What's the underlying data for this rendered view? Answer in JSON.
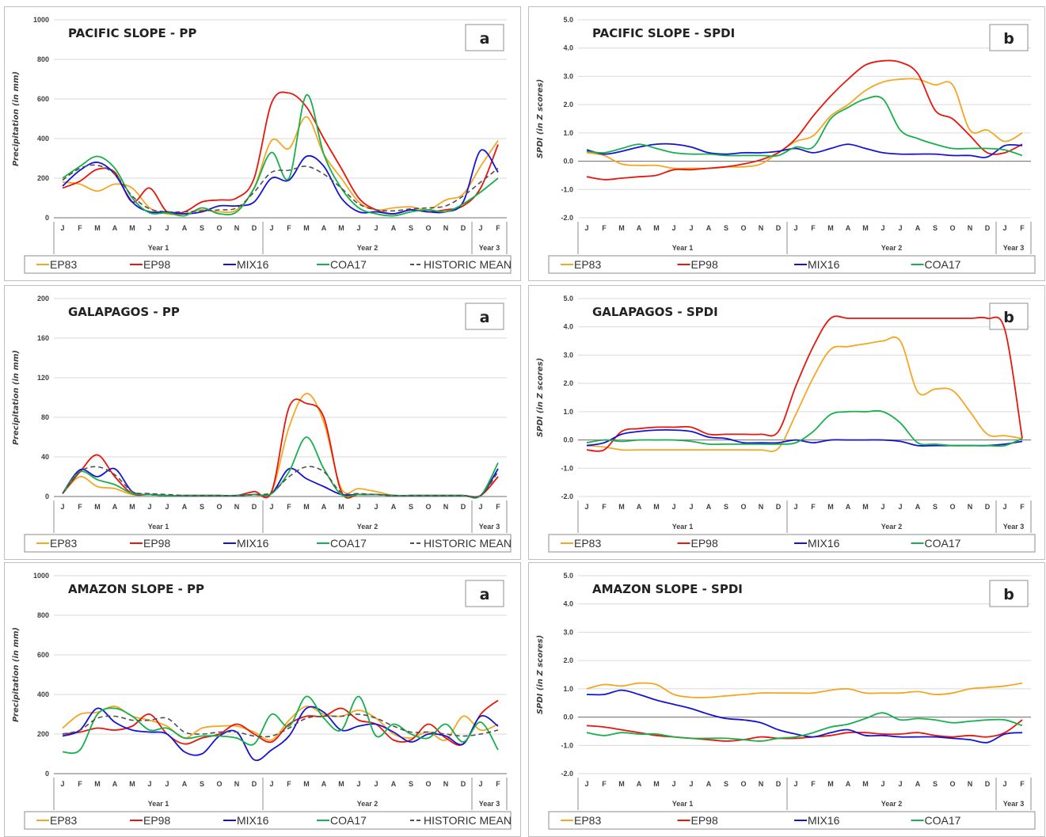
{
  "colors": {
    "EP83": "#f5a623",
    "EP98": "#e8160c",
    "MIX16": "#1414d4",
    "COA17": "#16b04c",
    "HISTORIC MEAN": "#505050"
  },
  "months": [
    "J",
    "F",
    "M",
    "A",
    "M",
    "J",
    "J",
    "A",
    "S",
    "O",
    "N",
    "D",
    "J",
    "F",
    "M",
    "A",
    "M",
    "J",
    "J",
    "A",
    "S",
    "O",
    "N",
    "D",
    "J",
    "F"
  ],
  "years": [
    "Year 1",
    "Year 2",
    "Year 3"
  ],
  "chart_data": [
    {
      "type": "line",
      "title": "PACIFIC SLOPE - PP",
      "letter": "a",
      "ylabel": "Precipitation (in mm)",
      "ylim": [
        0,
        1000
      ],
      "yticks": [
        "0",
        "200",
        "400",
        "600",
        "800",
        "1000"
      ],
      "legend": [
        "EP83",
        "EP98",
        "MIX16",
        "COA17",
        "HISTORIC MEAN"
      ],
      "series": [
        {
          "name": "EP83",
          "values": [
            180,
            170,
            135,
            170,
            150,
            50,
            20,
            20,
            40,
            30,
            40,
            150,
            390,
            350,
            510,
            320,
            200,
            80,
            40,
            50,
            55,
            40,
            90,
            120,
            260,
            390
          ]
        },
        {
          "name": "EP98",
          "values": [
            150,
            185,
            245,
            230,
            80,
            150,
            30,
            30,
            80,
            90,
            100,
            200,
            580,
            630,
            560,
            400,
            250,
            100,
            40,
            20,
            40,
            30,
            40,
            60,
            150,
            370
          ]
        },
        {
          "name": "MIX16",
          "values": [
            160,
            240,
            280,
            220,
            80,
            30,
            30,
            20,
            30,
            60,
            60,
            80,
            200,
            190,
            310,
            260,
            100,
            30,
            30,
            20,
            40,
            30,
            30,
            80,
            340,
            230
          ]
        },
        {
          "name": "COA17",
          "values": [
            200,
            260,
            310,
            250,
            100,
            25,
            25,
            10,
            50,
            20,
            30,
            150,
            330,
            200,
            620,
            320,
            150,
            50,
            20,
            10,
            30,
            40,
            30,
            70,
            130,
            200
          ]
        },
        {
          "name": "HISTORIC MEAN",
          "values": [
            190,
            250,
            265,
            220,
            110,
            45,
            30,
            30,
            35,
            40,
            50,
            130,
            230,
            240,
            260,
            220,
            150,
            70,
            40,
            35,
            45,
            50,
            60,
            110,
            180,
            250
          ]
        }
      ]
    },
    {
      "type": "line",
      "title": "PACIFIC SLOPE - SPDI",
      "letter": "b",
      "ylabel": "SPDI (in Z scores)",
      "ylim": [
        -2,
        5
      ],
      "yticks": [
        "-2.0",
        "-1.0",
        "0.0",
        "1.0",
        "2.0",
        "3.0",
        "4.0",
        "5.0"
      ],
      "legend": [
        "EP83",
        "EP98",
        "MIX16",
        "COA17"
      ],
      "series": [
        {
          "name": "EP83",
          "values": [
            0.3,
            0.2,
            -0.1,
            -0.15,
            -0.15,
            -0.25,
            -0.25,
            -0.25,
            -0.2,
            -0.2,
            -0.1,
            0.3,
            0.7,
            0.9,
            1.6,
            2.0,
            2.5,
            2.8,
            2.9,
            2.9,
            2.7,
            2.7,
            1.1,
            1.1,
            0.7,
            1.0
          ]
        },
        {
          "name": "EP98",
          "values": [
            -0.55,
            -0.65,
            -0.6,
            -0.55,
            -0.5,
            -0.3,
            -0.3,
            -0.25,
            -0.2,
            -0.1,
            0.05,
            0.3,
            0.8,
            1.6,
            2.3,
            2.9,
            3.4,
            3.55,
            3.5,
            3.1,
            1.8,
            1.5,
            0.9,
            0.3,
            0.3,
            0.6
          ]
        },
        {
          "name": "MIX16",
          "values": [
            0.4,
            0.25,
            0.35,
            0.5,
            0.6,
            0.6,
            0.5,
            0.3,
            0.25,
            0.3,
            0.3,
            0.35,
            0.45,
            0.3,
            0.45,
            0.6,
            0.45,
            0.3,
            0.25,
            0.25,
            0.25,
            0.2,
            0.2,
            0.15,
            0.55,
            0.55
          ]
        },
        {
          "name": "COA17",
          "values": [
            0.35,
            0.3,
            0.45,
            0.6,
            0.45,
            0.3,
            0.25,
            0.25,
            0.2,
            0.2,
            0.2,
            0.2,
            0.5,
            0.5,
            1.5,
            1.9,
            2.2,
            2.2,
            1.1,
            0.8,
            0.6,
            0.45,
            0.45,
            0.45,
            0.4,
            0.2
          ]
        }
      ]
    },
    {
      "type": "line",
      "title": "GALAPAGOS - PP",
      "letter": "a",
      "ylabel": "Precipitation (in mm)",
      "ylim": [
        0,
        200
      ],
      "yticks": [
        "0",
        "40",
        "80",
        "120",
        "160",
        "200"
      ],
      "legend": [
        "EP83",
        "EP98",
        "MIX16",
        "COA17",
        "HISTORIC MEAN"
      ],
      "series": [
        {
          "name": "EP83",
          "values": [
            3,
            20,
            10,
            8,
            2,
            2,
            1,
            1,
            1,
            1,
            1,
            2,
            5,
            70,
            104,
            75,
            8,
            8,
            5,
            1,
            1,
            1,
            1,
            1,
            1,
            20
          ]
        },
        {
          "name": "EP98",
          "values": [
            3,
            25,
            42,
            20,
            3,
            2,
            1,
            1,
            1,
            1,
            1,
            5,
            5,
            90,
            94,
            80,
            5,
            2,
            2,
            1,
            1,
            1,
            1,
            1,
            1,
            20
          ]
        },
        {
          "name": "MIX16",
          "values": [
            3,
            27,
            20,
            28,
            5,
            2,
            1,
            1,
            1,
            1,
            1,
            2,
            3,
            28,
            18,
            10,
            2,
            2,
            2,
            1,
            1,
            1,
            1,
            1,
            1,
            28
          ]
        },
        {
          "name": "COA17",
          "values": [
            3,
            25,
            17,
            12,
            3,
            2,
            1,
            1,
            1,
            1,
            1,
            2,
            3,
            25,
            60,
            28,
            2,
            2,
            2,
            1,
            1,
            1,
            1,
            1,
            1,
            34
          ]
        },
        {
          "name": "HISTORIC MEAN",
          "values": [
            3,
            25,
            30,
            22,
            5,
            3,
            2,
            1,
            1,
            1,
            1,
            2,
            4,
            20,
            30,
            25,
            4,
            3,
            2,
            1,
            1,
            1,
            1,
            1,
            1,
            25
          ]
        }
      ]
    },
    {
      "type": "line",
      "title": "GALAPAGOS - SPDI",
      "letter": "b",
      "ylabel": "SPDI (in Z scores)",
      "ylim": [
        -2,
        5
      ],
      "yticks": [
        "-2.0",
        "-1.0",
        "0.0",
        "1.0",
        "2.0",
        "3.0",
        "4.0",
        "5.0"
      ],
      "legend": [
        "EP83",
        "EP98",
        "MIX16",
        "COA17"
      ],
      "series": [
        {
          "name": "EP83",
          "values": [
            -0.2,
            -0.25,
            -0.35,
            -0.35,
            -0.35,
            -0.35,
            -0.35,
            -0.35,
            -0.35,
            -0.35,
            -0.35,
            -0.3,
            0.9,
            2.2,
            3.2,
            3.3,
            3.4,
            3.5,
            3.5,
            1.7,
            1.8,
            1.75,
            1.0,
            0.2,
            0.15,
            0.05
          ]
        },
        {
          "name": "EP98",
          "values": [
            -0.35,
            -0.35,
            0.3,
            0.4,
            0.45,
            0.45,
            0.45,
            0.2,
            0.2,
            0.2,
            0.2,
            0.3,
            1.9,
            3.3,
            4.3,
            4.3,
            4.3,
            4.3,
            4.3,
            4.3,
            4.3,
            4.3,
            4.3,
            4.3,
            3.9,
            0.05
          ]
        },
        {
          "name": "MIX16",
          "values": [
            -0.2,
            -0.1,
            0.2,
            0.3,
            0.35,
            0.35,
            0.3,
            0.1,
            0.05,
            -0.1,
            -0.1,
            -0.1,
            0.0,
            -0.1,
            0.0,
            0.0,
            0.0,
            0.0,
            -0.05,
            -0.2,
            -0.2,
            -0.2,
            -0.2,
            -0.2,
            -0.15,
            -0.05
          ]
        },
        {
          "name": "COA17",
          "values": [
            -0.1,
            0.0,
            -0.05,
            0.0,
            0.0,
            0.0,
            -0.05,
            -0.15,
            -0.15,
            -0.15,
            -0.15,
            -0.15,
            -0.1,
            0.3,
            0.9,
            1.0,
            1.0,
            1.0,
            0.6,
            -0.1,
            -0.15,
            -0.2,
            -0.2,
            -0.2,
            -0.2,
            0.05
          ]
        }
      ]
    },
    {
      "type": "line",
      "title": "AMAZON SLOPE - PP",
      "letter": "a",
      "ylabel": "Precipitation (in mm)",
      "ylim": [
        0,
        1000
      ],
      "yticks": [
        "0",
        "200",
        "400",
        "600",
        "800",
        "1000"
      ],
      "legend": [
        "EP83",
        "EP98",
        "MIX16",
        "COA17",
        "HISTORIC MEAN"
      ],
      "series": [
        {
          "name": "EP83",
          "values": [
            230,
            300,
            310,
            340,
            290,
            270,
            240,
            180,
            230,
            240,
            240,
            210,
            170,
            270,
            340,
            300,
            290,
            320,
            280,
            200,
            180,
            210,
            170,
            290,
            220,
            250
          ]
        },
        {
          "name": "EP98",
          "values": [
            200,
            210,
            230,
            220,
            240,
            300,
            200,
            150,
            180,
            200,
            250,
            200,
            160,
            250,
            290,
            290,
            330,
            270,
            250,
            170,
            170,
            250,
            180,
            150,
            300,
            370
          ]
        },
        {
          "name": "MIX16",
          "values": [
            190,
            220,
            330,
            260,
            220,
            210,
            200,
            110,
            100,
            190,
            210,
            70,
            120,
            190,
            330,
            310,
            220,
            240,
            250,
            210,
            160,
            200,
            190,
            150,
            290,
            240
          ]
        },
        {
          "name": "COA17",
          "values": [
            110,
            120,
            300,
            330,
            290,
            220,
            230,
            180,
            190,
            190,
            180,
            150,
            300,
            240,
            390,
            280,
            220,
            390,
            190,
            250,
            200,
            180,
            250,
            160,
            260,
            120
          ]
        },
        {
          "name": "HISTORIC MEAN",
          "values": [
            200,
            220,
            280,
            290,
            270,
            270,
            280,
            210,
            200,
            210,
            210,
            190,
            190,
            230,
            280,
            290,
            290,
            300,
            280,
            240,
            210,
            210,
            200,
            190,
            200,
            220
          ]
        }
      ]
    },
    {
      "type": "line",
      "title": "AMAZON SLOPE - SPDI",
      "letter": "b",
      "ylabel": "SPDI (in Z scores)",
      "ylim": [
        -2,
        5
      ],
      "yticks": [
        "-2.0",
        "-1.0",
        "0.0",
        "1.0",
        "2.0",
        "3.0",
        "4.0",
        "5.0"
      ],
      "legend": [
        "EP83",
        "EP98",
        "MIX16",
        "COA17"
      ],
      "series": [
        {
          "name": "EP83",
          "values": [
            1.0,
            1.15,
            1.1,
            1.2,
            1.15,
            0.8,
            0.7,
            0.7,
            0.75,
            0.8,
            0.85,
            0.85,
            0.85,
            0.85,
            0.95,
            1.0,
            0.85,
            0.85,
            0.85,
            0.9,
            0.8,
            0.85,
            1.0,
            1.05,
            1.1,
            1.2
          ]
        },
        {
          "name": "EP98",
          "values": [
            -0.3,
            -0.35,
            -0.45,
            -0.55,
            -0.65,
            -0.7,
            -0.75,
            -0.8,
            -0.85,
            -0.8,
            -0.7,
            -0.75,
            -0.75,
            -0.7,
            -0.65,
            -0.55,
            -0.55,
            -0.6,
            -0.6,
            -0.55,
            -0.65,
            -0.7,
            -0.65,
            -0.7,
            -0.55,
            -0.1
          ]
        },
        {
          "name": "MIX16",
          "values": [
            0.8,
            0.8,
            0.95,
            0.8,
            0.6,
            0.45,
            0.3,
            0.1,
            -0.05,
            -0.1,
            -0.2,
            -0.45,
            -0.6,
            -0.7,
            -0.55,
            -0.45,
            -0.65,
            -0.65,
            -0.7,
            -0.7,
            -0.7,
            -0.75,
            -0.8,
            -0.9,
            -0.6,
            -0.55
          ]
        },
        {
          "name": "COA17",
          "values": [
            -0.55,
            -0.65,
            -0.55,
            -0.6,
            -0.6,
            -0.7,
            -0.75,
            -0.75,
            -0.75,
            -0.8,
            -0.85,
            -0.75,
            -0.7,
            -0.55,
            -0.35,
            -0.25,
            -0.05,
            0.15,
            -0.1,
            -0.05,
            -0.1,
            -0.2,
            -0.15,
            -0.1,
            -0.1,
            -0.3
          ]
        }
      ]
    }
  ]
}
